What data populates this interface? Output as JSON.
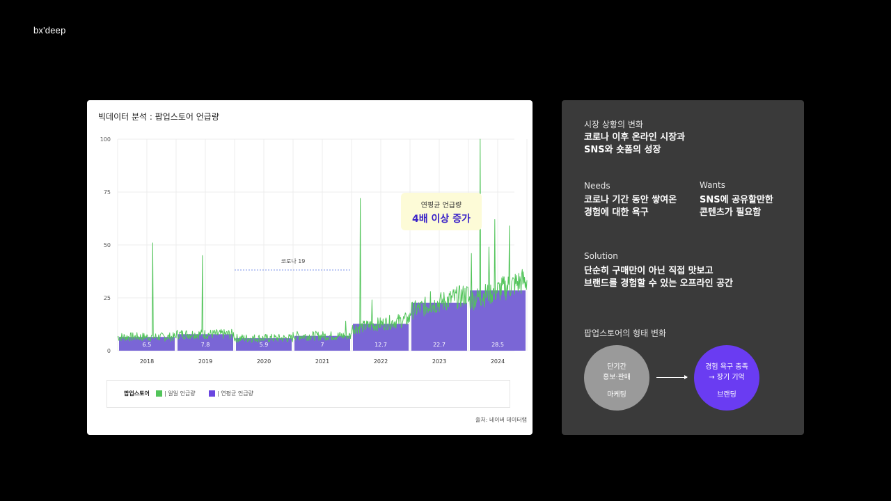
{
  "brand": "bx'deep",
  "card": {
    "title": "빅데이터 분석 : 팝업스토어 언급량",
    "source": "출처: 네이버 데이터랩",
    "legend": {
      "title": "팝업스토어",
      "daily": "| 일일 언급량",
      "yearly": "| 연평균 언급량"
    },
    "callout": {
      "line1": "연평균 언급량",
      "line2": "4배 이상 증가"
    },
    "covid_label": "코로나 19"
  },
  "chart_data": {
    "type": "bar+line",
    "categories": [
      "2018",
      "2019",
      "2020",
      "2021",
      "2022",
      "2023",
      "2024"
    ],
    "yticks": [
      "100",
      "75",
      "50",
      "25",
      "0"
    ],
    "ylim": [
      0,
      100
    ],
    "series": [
      {
        "name": "연평균 언급량",
        "type": "bar",
        "color": "#7a66d6",
        "values": [
          6.5,
          7.8,
          5.9,
          7.0,
          12.7,
          22.7,
          28.5
        ]
      },
      {
        "name": "일일 언급량",
        "type": "line",
        "color": "#52c45a",
        "baseline": [
          6.5,
          7.8,
          5.9,
          7.0,
          12.7,
          22.7,
          28.5
        ],
        "spikes": [
          {
            "t": 0.6,
            "v": 51
          },
          {
            "t": 1.45,
            "v": 45
          },
          {
            "t": 3.9,
            "v": 14
          },
          {
            "t": 4.15,
            "v": 72
          },
          {
            "t": 4.35,
            "v": 24
          },
          {
            "t": 5.35,
            "v": 28
          },
          {
            "t": 6.2,
            "v": 100
          },
          {
            "t": 6.45,
            "v": 62
          },
          {
            "t": 6.7,
            "v": 59
          },
          {
            "t": 6.05,
            "v": 46
          },
          {
            "t": 6.35,
            "v": 49
          }
        ]
      }
    ],
    "annotation": {
      "label": "코로나 19",
      "from": "2020",
      "to": "2021"
    },
    "grid": true
  },
  "panel": {
    "s1_label": "시장 상황의 변화",
    "s1_text": "코로나 이후 온라인 시장과\nSNS와 숏폼의 성장",
    "needs_label": "Needs",
    "needs_text": "코로나 기간 동안 쌓여온\n경험에 대한 욕구",
    "wants_label": "Wants",
    "wants_text": "SNS에 공유할만한\n콘텐츠가 필요함",
    "solution_label": "Solution",
    "solution_text": "단순히 구매만이 아닌 직접 맛보고\n브랜드를 경험할 수 있는 오프라인 공간",
    "form_label": "팝업스토어의 형태 변화",
    "c1_main": "단기간\n홍보·판매",
    "c1_sub": "마케팅",
    "c2_main": "경험 욕구 충족\n→ 장기 기억",
    "c2_sub": "브랜딩",
    "c1_color": "#9a9a9a",
    "c2_color": "#6a3cf2"
  }
}
